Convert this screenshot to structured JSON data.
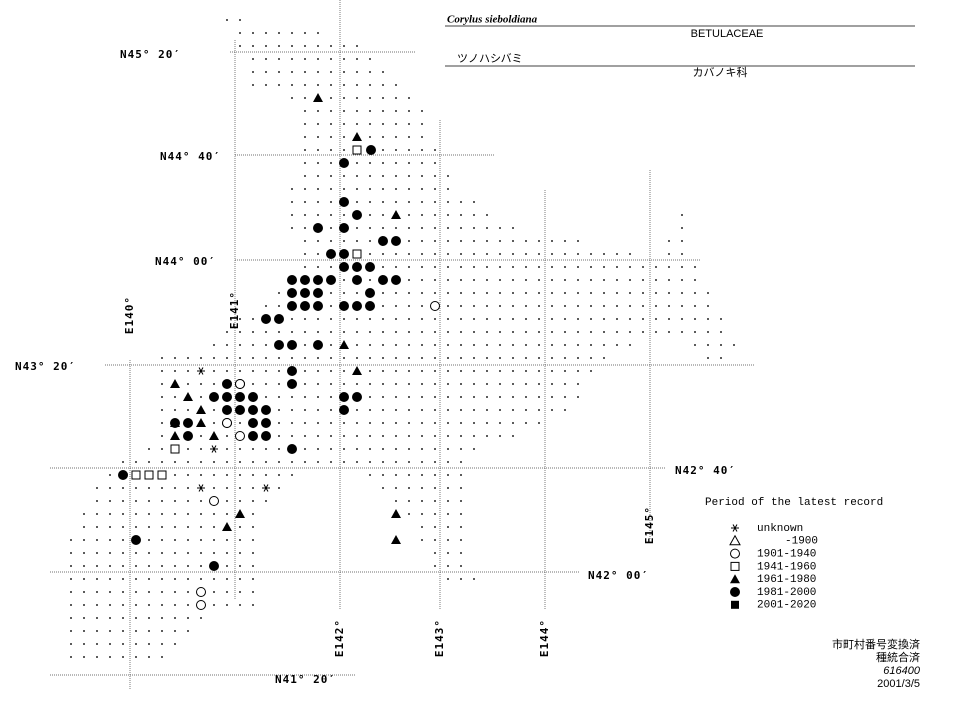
{
  "header": {
    "scientific_name": "Corylus sieboldiana",
    "family": "BETULACEAE",
    "japanese_name": "ツノハシバミ",
    "japanese_family": "カバノキ科"
  },
  "latitude_labels": [
    "N45° 20′",
    "N44° 40′",
    "N44° 00′",
    "N43° 20′",
    "N42° 40′",
    "N42° 00′",
    "N41° 20′"
  ],
  "longitude_labels": [
    "E140°",
    "E141°",
    "E142°",
    "E143°",
    "E144°",
    "E145°"
  ],
  "legend": {
    "title": "Period of the latest record",
    "entries": [
      "unknown",
      "-1900",
      "1901-1940",
      "1941-1960",
      "1961-1980",
      "1981-2000",
      "2001-2020"
    ]
  },
  "footer": [
    "市町村番号変換済",
    "種統合済",
    "616400",
    "2001/3/5"
  ]
}
